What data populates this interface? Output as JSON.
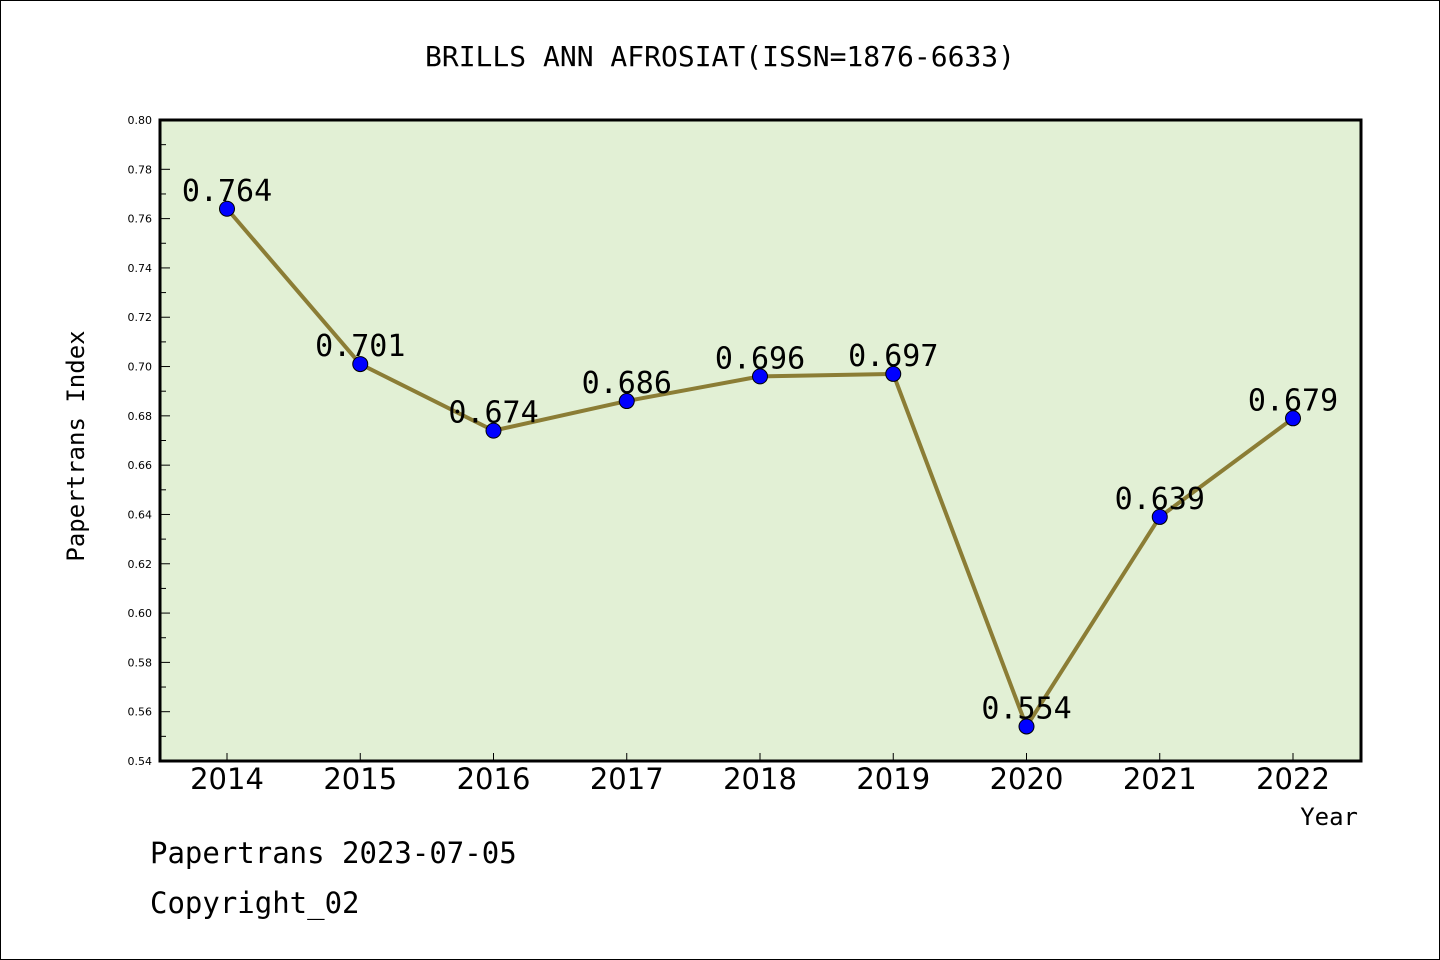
{
  "chart_data": {
    "type": "line",
    "title": "BRILLS ANN AFROSIAT(ISSN=1876-6633)",
    "xlabel": "Year",
    "ylabel": "Papertrans Index",
    "categories": [
      "2014",
      "2015",
      "2016",
      "2017",
      "2018",
      "2019",
      "2020",
      "2021",
      "2022"
    ],
    "series": [
      {
        "values": [
          0.764,
          0.701,
          0.674,
          0.686,
          0.696,
          0.697,
          0.554,
          0.639,
          0.679
        ],
        "labels": [
          "0.764",
          "0.701",
          "0.674",
          "0.686",
          "0.696",
          "0.697",
          "0.554",
          "0.639",
          "0.679"
        ]
      }
    ],
    "ylim": [
      0.54,
      0.8
    ],
    "yticks": [
      "0.54",
      "0.56",
      "0.58",
      "0.60",
      "0.62",
      "0.64",
      "0.66",
      "0.68",
      "0.70",
      "0.72",
      "0.74",
      "0.76",
      "0.78",
      "0.80"
    ],
    "grid": false,
    "colors": {
      "plot_background": "#e2f0d5",
      "line": "#8b7d35",
      "marker": "#0000ff"
    }
  },
  "footer": {
    "line1": "Papertrans 2023-07-05",
    "line2": "Copyright_02"
  }
}
